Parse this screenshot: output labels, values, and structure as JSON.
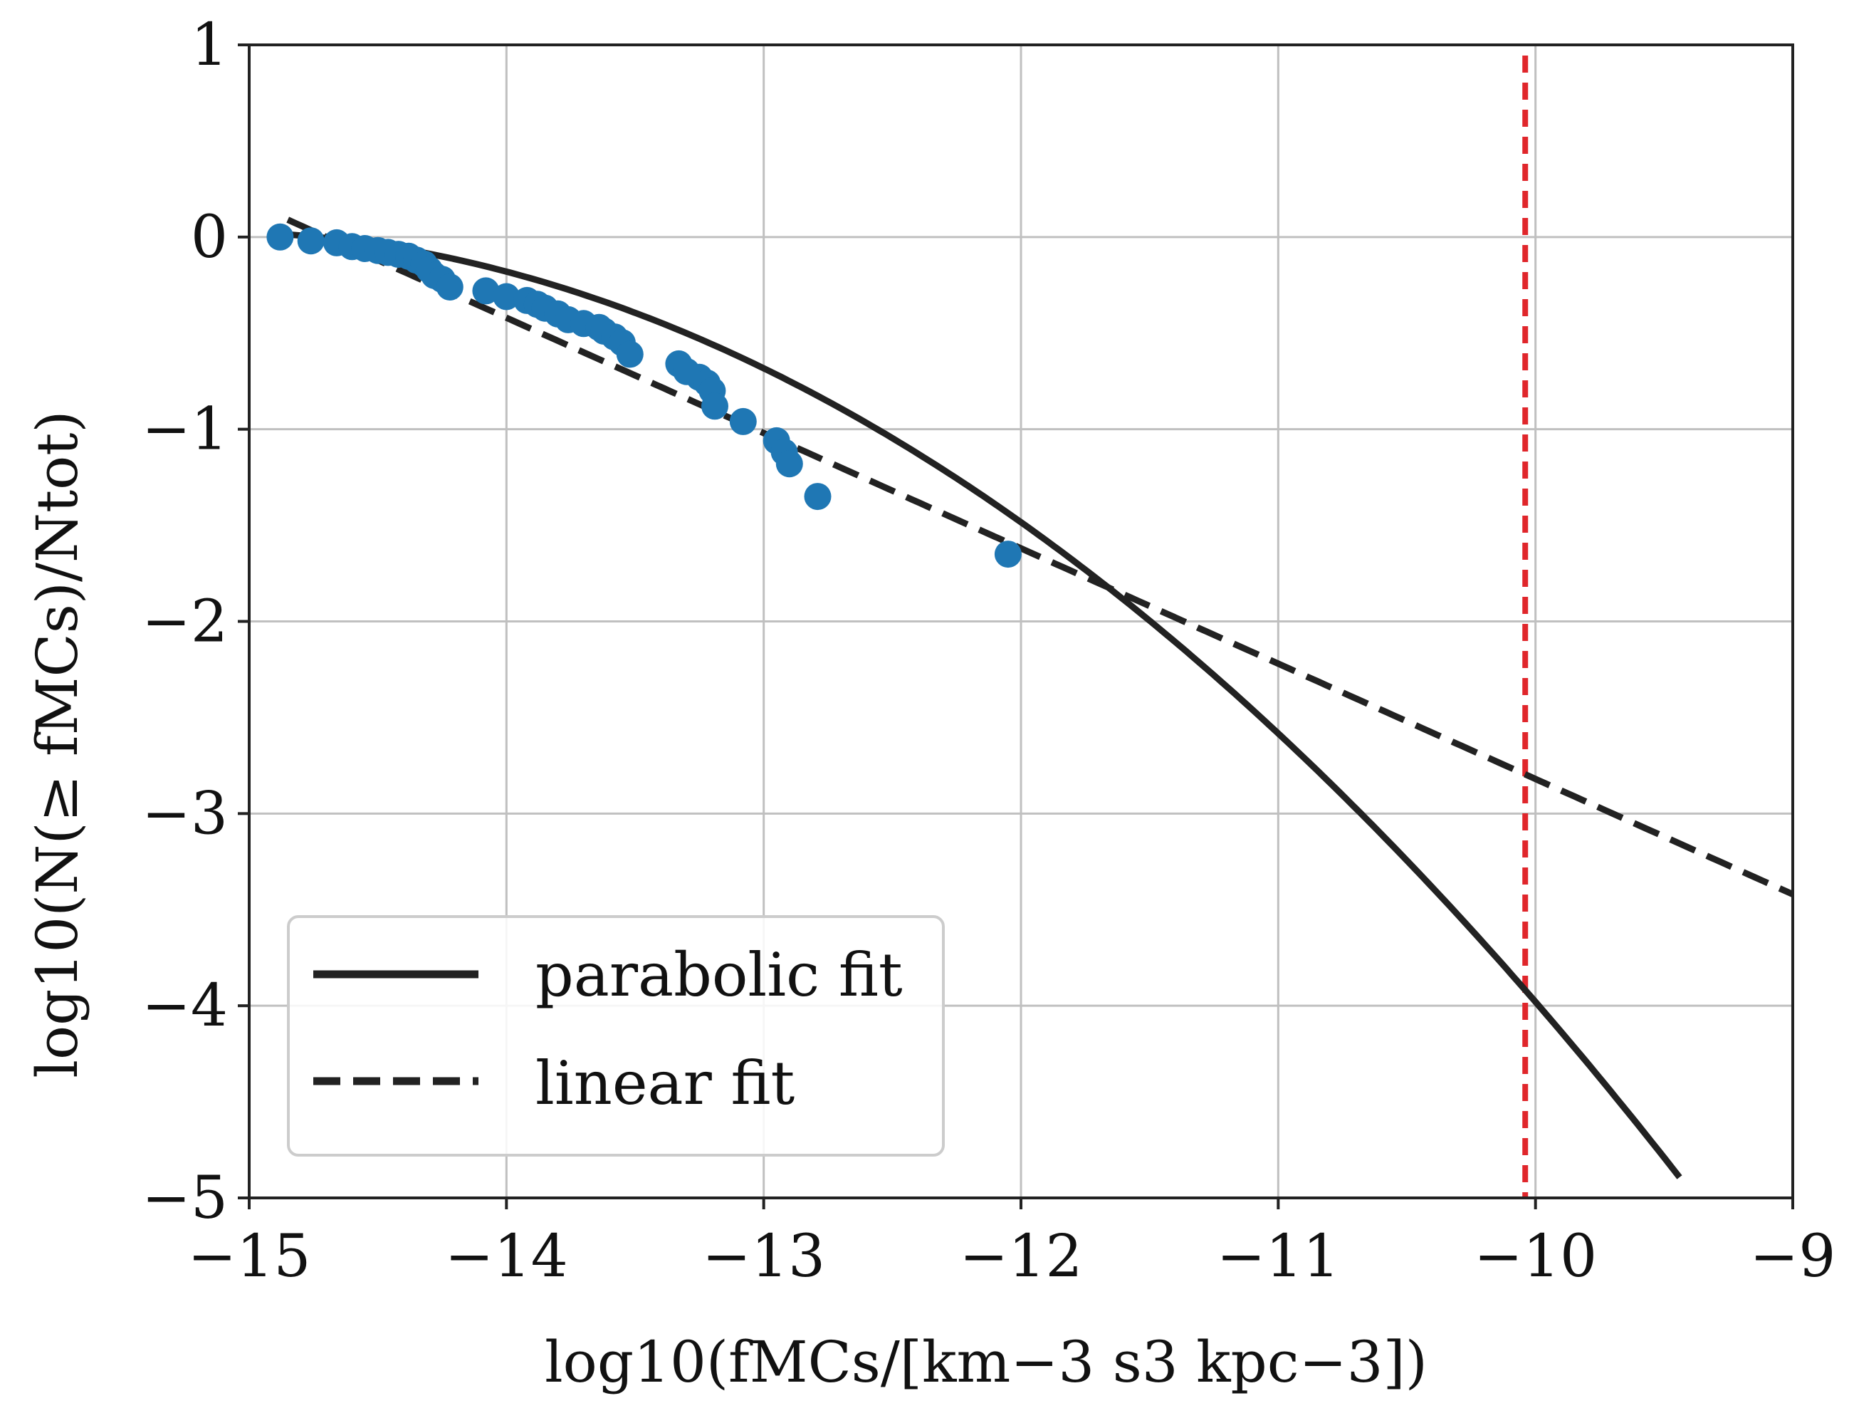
{
  "chart_data": {
    "type": "scatter",
    "xlabel": "log10(fMCs/[km−3 s3 kpc−3])",
    "ylabel": "log10(N(≥ fMCs)/Ntot)",
    "xlim": [
      -15,
      -9
    ],
    "ylim": [
      -5,
      1
    ],
    "grid": true,
    "x_ticks": [
      -15,
      -14,
      -13,
      -12,
      -11,
      -10,
      -9
    ],
    "y_ticks": [
      1,
      0,
      -1,
      -2,
      -3,
      -4,
      -5
    ],
    "x_tick_labels": [
      "−15",
      "−14",
      "−13",
      "−12",
      "−11",
      "−10",
      "−9"
    ],
    "y_tick_labels": [
      "1",
      "0",
      "−1",
      "−2",
      "−3",
      "−4",
      "−5"
    ],
    "threshold_x": -10.04,
    "threshold_color": "#e0262b",
    "point_color": "#1f77b4",
    "line_color": "#222222",
    "legend": {
      "position": "lower-left",
      "entries": [
        {
          "label": "parabolic fit",
          "style": "solid"
        },
        {
          "label": "linear fit",
          "style": "dashed"
        }
      ]
    },
    "series": [
      {
        "name": "data",
        "kind": "scatter",
        "x": [
          -14.88,
          -14.76,
          -14.66,
          -14.6,
          -14.55,
          -14.5,
          -14.46,
          -14.42,
          -14.38,
          -14.35,
          -14.32,
          -14.3,
          -14.28,
          -14.25,
          -14.22,
          -14.08,
          -14.0,
          -13.92,
          -13.88,
          -13.85,
          -13.8,
          -13.76,
          -13.7,
          -13.64,
          -13.62,
          -13.58,
          -13.55,
          -13.52,
          -13.33,
          -13.3,
          -13.25,
          -13.22,
          -13.2,
          -13.19,
          -13.08,
          -12.95,
          -12.92,
          -12.9,
          -12.79,
          -12.05
        ],
        "y": [
          0.0,
          -0.02,
          -0.03,
          -0.05,
          -0.06,
          -0.07,
          -0.08,
          -0.09,
          -0.1,
          -0.12,
          -0.14,
          -0.17,
          -0.2,
          -0.22,
          -0.26,
          -0.28,
          -0.31,
          -0.33,
          -0.35,
          -0.37,
          -0.4,
          -0.43,
          -0.45,
          -0.47,
          -0.49,
          -0.52,
          -0.55,
          -0.61,
          -0.66,
          -0.7,
          -0.73,
          -0.76,
          -0.8,
          -0.88,
          -0.96,
          -1.06,
          -1.12,
          -1.18,
          -1.35,
          -1.65
        ]
      },
      {
        "name": "parabolic fit",
        "kind": "line",
        "style": "solid",
        "x_range": [
          -14.85,
          -9.44
        ],
        "coefficients": {
          "a": -0.149,
          "b": -4.526,
          "c": -34.34
        }
      },
      {
        "name": "linear fit",
        "kind": "line",
        "style": "dashed",
        "x_range": [
          -14.85,
          -9.0
        ],
        "coefficients": {
          "slope": -0.6,
          "intercept": -8.82
        }
      }
    ]
  }
}
